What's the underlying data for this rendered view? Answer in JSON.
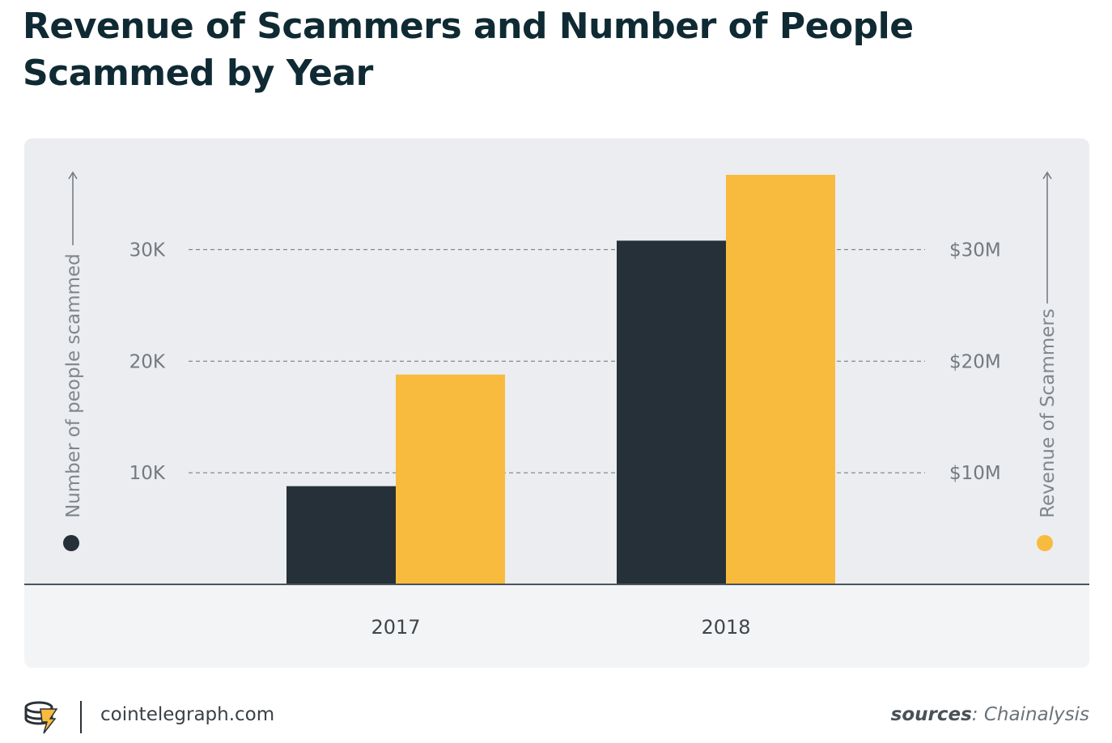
{
  "title": "Revenue of Scammers and Number of People Scammed by Year",
  "footer": {
    "site": "cointelegraph.com",
    "sources_label": "sources",
    "sources_sep": ": ",
    "sources_value": "Chainalysis"
  },
  "colors": {
    "people": "#263038",
    "revenue": "#f8bb3e",
    "panel": "#ebedf0",
    "grid": "#6a7178"
  },
  "chart_data": {
    "type": "bar",
    "categories": [
      "2017",
      "2018"
    ],
    "series": [
      {
        "axis": "left",
        "values": [
          8800,
          30800
        ]
      },
      {
        "axis": "right",
        "values": [
          18800000,
          36700000
        ]
      }
    ],
    "left_axis": {
      "label": "Number of people scammed",
      "ticks": [
        10000,
        20000,
        30000
      ],
      "tick_labels": [
        "10K",
        "20K",
        "30K"
      ],
      "range": [
        0,
        36700
      ]
    },
    "right_axis": {
      "label": "Revenue of Scammers",
      "ticks": [
        10000000,
        20000000,
        30000000
      ],
      "tick_labels": [
        "$10M",
        "$20M",
        "$30M"
      ],
      "range": [
        0,
        36700000
      ]
    },
    "grid": "dashed horizontal",
    "legend": "dots at the bottom of each axis"
  }
}
